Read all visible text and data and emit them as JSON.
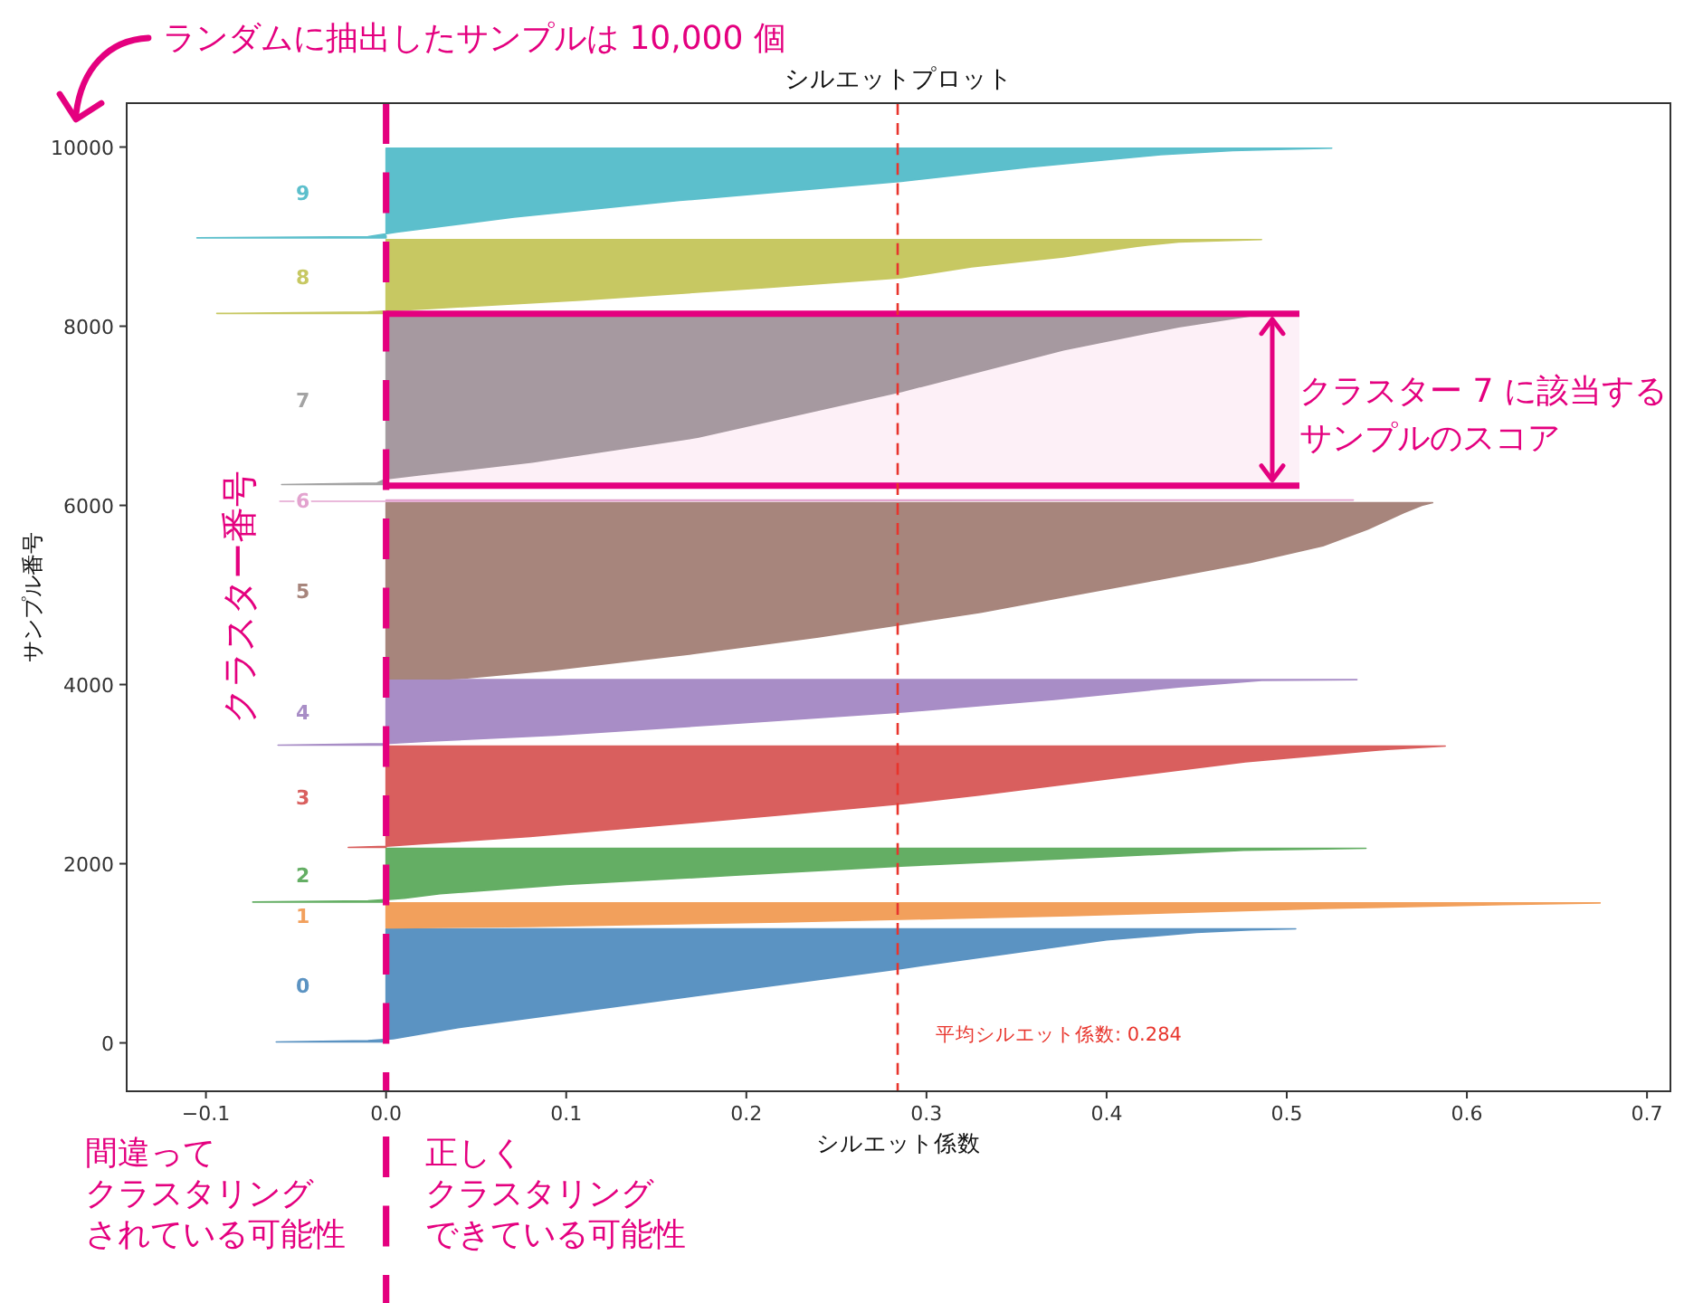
{
  "chart_data": {
    "type": "area",
    "orientation": "horizontal",
    "title": "シルエットプロット",
    "xlabel": "シルエット係数",
    "ylabel": "サンプル番号",
    "xlim": [
      -0.144,
      0.713
    ],
    "ylim": [
      -540,
      10490
    ],
    "xticks": [
      {
        "value": -0.1,
        "label": "−0.1"
      },
      {
        "value": 0,
        "label": "0.0"
      },
      0.1,
      0.2,
      0.3,
      0.4,
      0.5,
      0.6,
      0.7
    ],
    "yticks": [
      0,
      2000,
      4000,
      6000,
      8000,
      10000
    ],
    "series": [
      {
        "name": "0",
        "color": "#5b93c2",
        "x": [
          10,
          25,
          46,
          170,
          378,
          584,
          830,
          996,
          1150,
          1232,
          1262,
          1273
        ],
        "values": [
          -0.061,
          -0.01,
          0.004,
          0.04,
          0.117,
          0.194,
          0.286,
          0.345,
          0.4,
          0.45,
          0.48,
          0.505
        ]
      },
      {
        "name": "1",
        "color": "#f2a05c",
        "x": [
          1283,
          1300,
          1350,
          1420,
          1500,
          1545,
          1562
        ],
        "values": [
          0.004,
          0.08,
          0.22,
          0.38,
          0.52,
          0.62,
          0.674
        ]
      },
      {
        "name": "2",
        "color": "#64ae64",
        "x": [
          1572,
          1585,
          1614,
          1665,
          1768,
          1871,
          1974,
          2077,
          2149,
          2172
        ],
        "values": [
          -0.074,
          -0.01,
          0.01,
          0.03,
          0.1,
          0.194,
          0.286,
          0.399,
          0.476,
          0.544
        ]
      },
      {
        "name": "3",
        "color": "#d95f5e",
        "x": [
          2182,
          2195,
          2222,
          2303,
          2424,
          2545,
          2673,
          2766,
          2952,
          3138,
          3277,
          3313
        ],
        "values": [
          -0.021,
          0.0,
          0.02,
          0.08,
          0.15,
          0.22,
          0.288,
          0.329,
          0.403,
          0.477,
          0.556,
          0.588
        ]
      },
      {
        "name": "4",
        "color": "#a88dc6",
        "x": [
          3323,
          3341,
          3370,
          3435,
          3556,
          3694,
          3833,
          3972,
          4046,
          4055
        ],
        "values": [
          -0.06,
          0.0,
          0.025,
          0.094,
          0.186,
          0.288,
          0.371,
          0.44,
          0.486,
          0.539
        ]
      },
      {
        "name": "5",
        "color": "#a7857c",
        "x": [
          4065,
          4075,
          4158,
          4344,
          4530,
          4668,
          4806,
          4992,
          5178,
          5364,
          5549,
          5735,
          5919,
          6000,
          6030
        ],
        "values": [
          0.035,
          0.045,
          0.09,
          0.17,
          0.24,
          0.285,
          0.33,
          0.38,
          0.43,
          0.48,
          0.52,
          0.545,
          0.565,
          0.575,
          0.581
        ]
      },
      {
        "name": "6",
        "color": "#e3a3cf",
        "x": [
          6045,
          6052,
          6060
        ],
        "values": [
          -0.059,
          0.25,
          0.537
        ]
      },
      {
        "name": "7",
        "color": "#a3a3a3",
        "x": [
          6232,
          6250,
          6297,
          6343,
          6483,
          6760,
          7271,
          7735,
          7994,
          8123
        ],
        "values": [
          -0.058,
          -0.005,
          0.0,
          0.02,
          0.081,
          0.173,
          0.286,
          0.376,
          0.44,
          0.482
        ]
      },
      {
        "name": "8",
        "color": "#c7c862",
        "x": [
          8143,
          8160,
          8198,
          8291,
          8430,
          8541,
          8663,
          8774,
          8893,
          8940,
          8968
        ],
        "values": [
          -0.094,
          -0.01,
          0.025,
          0.108,
          0.21,
          0.286,
          0.325,
          0.376,
          0.417,
          0.44,
          0.486
        ]
      },
      {
        "name": "9",
        "color": "#5cbfcc",
        "x": [
          8986,
          9000,
          9051,
          9218,
          9404,
          9618,
          9775,
          9914,
          9960,
          9988
        ],
        "values": [
          -0.105,
          -0.01,
          0.006,
          0.071,
          0.163,
          0.286,
          0.357,
          0.43,
          0.47,
          0.525
        ]
      }
    ],
    "ref_lines": [
      {
        "axis": "x",
        "value": 0.284,
        "label": "平均シルエット係数: 0.284",
        "color": "#e8342c",
        "line_style": "dashed"
      },
      {
        "axis": "x",
        "value": 0,
        "color": "#e4007f",
        "line_style": "dashed"
      }
    ],
    "bands": [
      {
        "axis": "y",
        "from": 6220,
        "to": 8140,
        "label": "クラスター 7 に該当するサンプルのスコア",
        "color": "#e4007f"
      }
    ],
    "annotations": [
      "ランダムに抽出したサンプルは 10,000 個",
      "クラスター番号",
      "間違ってクラスタリングされている可能性",
      "正しくクラスタリングできている可能性"
    ]
  }
}
